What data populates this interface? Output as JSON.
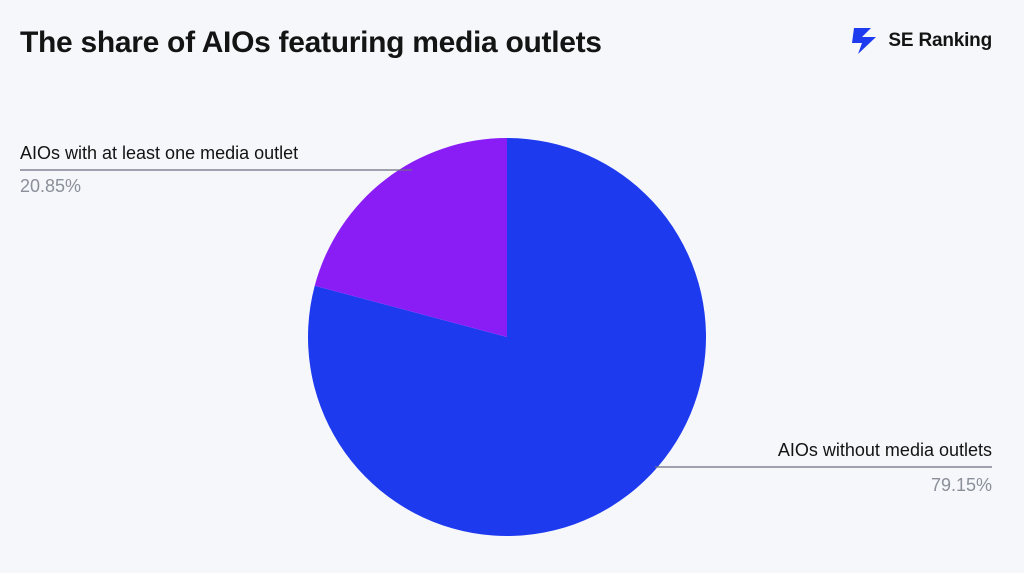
{
  "title": "The share of AIOs featuring media outlets",
  "brand": {
    "name": "SE Ranking",
    "icon": "se-ranking-logo-icon",
    "color": "#1f3bf0"
  },
  "chart_data": {
    "type": "pie",
    "title": "The share of AIOs featuring media outlets",
    "start_angle_deg": 0,
    "direction": "counterclockwise",
    "slices": [
      {
        "label": "AIOs without media outlets",
        "value": 79.15,
        "display": "79.15%",
        "color": "#1e3aef"
      },
      {
        "label": "AIOs with at least one media outlet",
        "value": 20.85,
        "display": "20.85%",
        "color": "#8a1cf5"
      }
    ],
    "legend": "none",
    "labels": "outside-with-leader-lines"
  }
}
